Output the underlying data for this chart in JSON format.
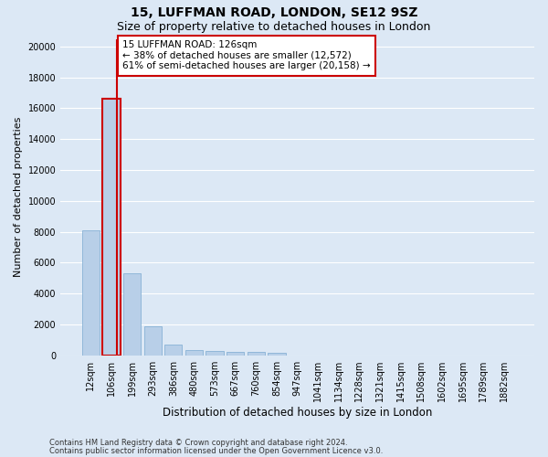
{
  "title1": "15, LUFFMAN ROAD, LONDON, SE12 9SZ",
  "title2": "Size of property relative to detached houses in London",
  "xlabel": "Distribution of detached houses by size in London",
  "ylabel": "Number of detached properties",
  "bar_labels": [
    "12sqm",
    "106sqm",
    "199sqm",
    "293sqm",
    "386sqm",
    "480sqm",
    "573sqm",
    "667sqm",
    "760sqm",
    "854sqm",
    "947sqm",
    "1041sqm",
    "1134sqm",
    "1228sqm",
    "1321sqm",
    "1415sqm",
    "1508sqm",
    "1602sqm",
    "1695sqm",
    "1789sqm",
    "1882sqm"
  ],
  "bar_values": [
    8100,
    16600,
    5300,
    1850,
    700,
    360,
    270,
    220,
    200,
    160,
    0,
    0,
    0,
    0,
    0,
    0,
    0,
    0,
    0,
    0,
    0
  ],
  "bar_color": "#b8cfe8",
  "bar_edge_color": "#7aaad0",
  "highlight_bar_index": 1,
  "highlight_edge_color": "#cc0000",
  "vline_x": 1.28,
  "annotation_box_text": "15 LUFFMAN ROAD: 126sqm\n← 38% of detached houses are smaller (12,572)\n61% of semi-detached houses are larger (20,158) →",
  "annotation_box_color": "white",
  "annotation_box_edge_color": "#cc0000",
  "ylim": [
    0,
    20500
  ],
  "yticks": [
    0,
    2000,
    4000,
    6000,
    8000,
    10000,
    12000,
    14000,
    16000,
    18000,
    20000
  ],
  "footer1": "Contains HM Land Registry data © Crown copyright and database right 2024.",
  "footer2": "Contains public sector information licensed under the Open Government Licence v3.0.",
  "bg_color": "#dce8f5",
  "plot_bg_color": "#dce8f5",
  "grid_color": "white",
  "title1_fontsize": 10,
  "title2_fontsize": 9,
  "xlabel_fontsize": 8.5,
  "ylabel_fontsize": 8,
  "tick_fontsize": 7,
  "annotation_fontsize": 7.5,
  "footer_fontsize": 6
}
